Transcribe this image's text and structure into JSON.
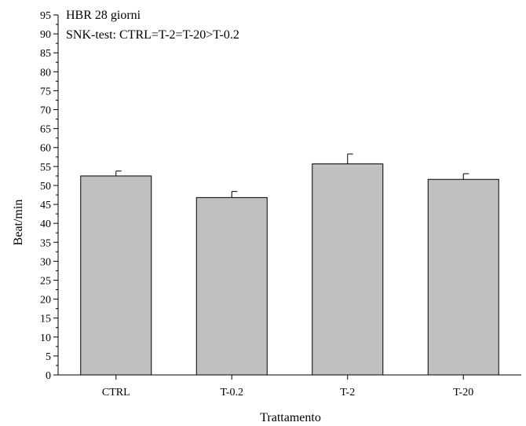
{
  "chart_data": {
    "type": "bar",
    "categories": [
      "CTRL",
      "T-0.2",
      "T-2",
      "T-20"
    ],
    "values": [
      52.5,
      46.8,
      55.7,
      51.6
    ],
    "errors": [
      1.3,
      1.6,
      2.6,
      1.5
    ],
    "xlabel": "Trattamento",
    "ylabel": "Beat/min",
    "ylim": [
      0,
      95
    ],
    "yticks": [
      0,
      5,
      10,
      15,
      20,
      25,
      30,
      35,
      40,
      45,
      50,
      55,
      60,
      65,
      70,
      75,
      80,
      85,
      90,
      95
    ],
    "annotations": [
      "HBR 28 giorni",
      "SNK-test: CTRL=T-2=T-20>T-0.2"
    ],
    "bar_color": "#c0c0c0",
    "grid": false
  }
}
